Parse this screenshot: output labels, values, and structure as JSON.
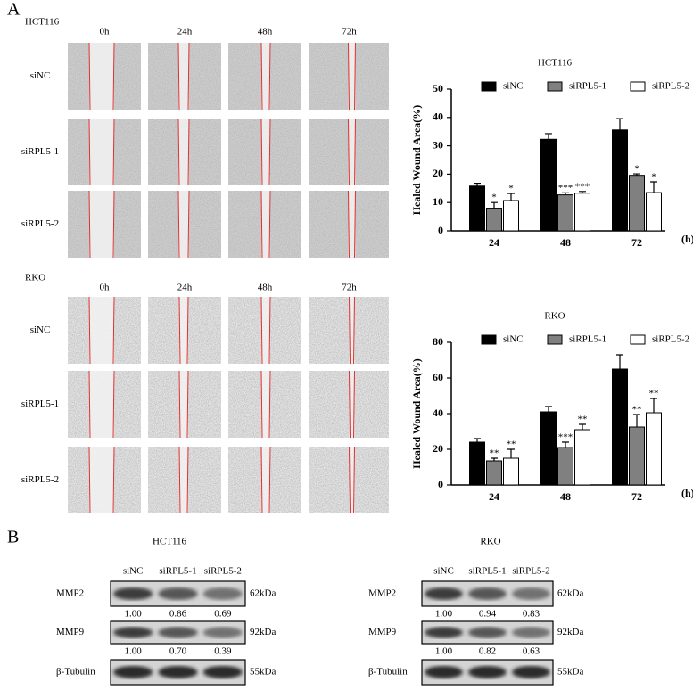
{
  "panel_labels": [
    "A",
    "B"
  ],
  "wound_assay": [
    {
      "cell_line": "HCT116",
      "times": [
        "0h",
        "24h",
        "48h",
        "72h"
      ],
      "groups": [
        "siNC",
        "siRPL5-1",
        "siRPL5-2"
      ]
    },
    {
      "cell_line": "RKO",
      "times": [
        "0h",
        "24h",
        "48h",
        "72h"
      ],
      "groups": [
        "siNC",
        "siRPL5-1",
        "siRPL5-2"
      ]
    }
  ],
  "chart_data": [
    {
      "type": "bar",
      "title": "HCT116",
      "y_label": "Healed Wound Area(%)",
      "x_unit": "(h)",
      "categories": [
        "24",
        "48",
        "72"
      ],
      "ylim": [
        0,
        50
      ],
      "yticks": [
        0,
        10,
        20,
        30,
        40,
        50
      ],
      "legend": "top",
      "series": [
        {
          "name": "siNC",
          "color": "#000000",
          "values": [
            15.8,
            32.3,
            35.6
          ],
          "errors": [
            1,
            2,
            4
          ]
        },
        {
          "name": "siRPL5-1",
          "color": "#808080",
          "values": [
            8,
            12.7,
            19.6
          ],
          "errors": [
            2,
            0.7,
            0.5
          ],
          "significance": [
            "*",
            "***",
            "*"
          ]
        },
        {
          "name": "siRPL5-2",
          "color": "#ffffff",
          "values": [
            10.7,
            13.3,
            13.5
          ],
          "errors": [
            2.5,
            0.6,
            3.8
          ],
          "significance": [
            "*",
            "***",
            "*"
          ]
        }
      ]
    },
    {
      "type": "bar",
      "title": "RKO",
      "y_label": "Healed Wound Area(%)",
      "x_unit": "(h)",
      "categories": [
        "24",
        "48",
        "72"
      ],
      "ylim": [
        0,
        80
      ],
      "yticks": [
        0,
        20,
        40,
        60,
        80
      ],
      "legend": "top",
      "series": [
        {
          "name": "siNC",
          "color": "#000000",
          "values": [
            24,
            41,
            65
          ],
          "errors": [
            2,
            3,
            8
          ]
        },
        {
          "name": "siRPL5-1",
          "color": "#808080",
          "values": [
            13.5,
            21,
            32.5
          ],
          "errors": [
            1.5,
            3,
            7
          ],
          "significance": [
            "**",
            "***",
            "**"
          ]
        },
        {
          "name": "siRPL5-2",
          "color": "#ffffff",
          "values": [
            15,
            31,
            40.5
          ],
          "errors": [
            5,
            3,
            8
          ],
          "significance": [
            "**",
            "**",
            "**"
          ]
        }
      ]
    }
  ],
  "western_blot": [
    {
      "cell_line": "HCT116",
      "lanes": [
        "siNC",
        "siRPL5-1",
        "siRPL5-2"
      ],
      "proteins": [
        {
          "name": "MMP2",
          "size": "62kDa",
          "ratios": [
            "1.00",
            "0.86",
            "0.69"
          ]
        },
        {
          "name": "MMP9",
          "size": "92kDa",
          "ratios": [
            "1.00",
            "0.70",
            "0.39"
          ]
        },
        {
          "name": "β-Tubulin",
          "size": "55kDa"
        }
      ]
    },
    {
      "cell_line": "RKO",
      "lanes": [
        "siNC",
        "siRPL5-1",
        "siRPL5-2"
      ],
      "proteins": [
        {
          "name": "MMP2",
          "size": "62kDa",
          "ratios": [
            "1.00",
            "0.94",
            "0.83"
          ]
        },
        {
          "name": "MMP9",
          "size": "92kDa",
          "ratios": [
            "1.00",
            "0.82",
            "0.63"
          ]
        },
        {
          "name": "β-Tubulin",
          "size": "55kDa"
        }
      ]
    }
  ]
}
